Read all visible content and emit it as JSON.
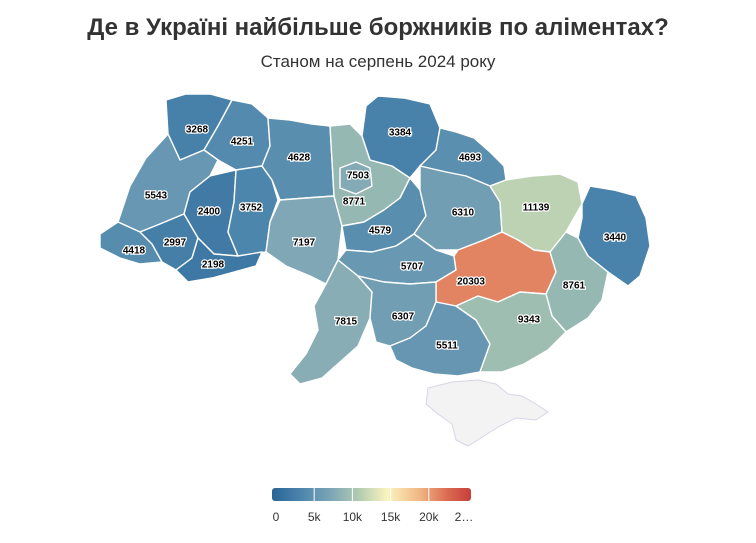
{
  "title": "Де в Україні найбільше боржників по аліментах?",
  "subtitle": "Станом на серпень 2024 року",
  "legend": {
    "min": 0,
    "max": 25000,
    "ticks": [
      "0",
      "5k",
      "10k",
      "15k",
      "20k",
      "2…"
    ],
    "colors": [
      "#2a6496",
      "#4a84ac",
      "#7ea6b6",
      "#b3cdb0",
      "#fbf4bf",
      "#f0b785",
      "#db6b52",
      "#c63f3a"
    ]
  },
  "regions": [
    {
      "id": "volyn",
      "value": 3268
    },
    {
      "id": "rivne",
      "value": 4251
    },
    {
      "id": "lviv",
      "value": 5543
    },
    {
      "id": "ternopil",
      "value": 2400
    },
    {
      "id": "khmelnytskyi",
      "value": 3752
    },
    {
      "id": "zakarpattia",
      "value": 4418
    },
    {
      "id": "ivano-frankivsk",
      "value": 2997
    },
    {
      "id": "chernivtsi",
      "value": 2198
    },
    {
      "id": "zhytomyr",
      "value": 4628
    },
    {
      "id": "vinnytsia",
      "value": 7197
    },
    {
      "id": "kyiv-city",
      "value": 7503
    },
    {
      "id": "kyiv-oblast",
      "value": 8771
    },
    {
      "id": "chernihiv",
      "value": 3384
    },
    {
      "id": "sumy",
      "value": 4693
    },
    {
      "id": "cherkasy",
      "value": 4579
    },
    {
      "id": "poltava",
      "value": 6310
    },
    {
      "id": "kharkiv",
      "value": 11139
    },
    {
      "id": "kirovohrad",
      "value": 5707
    },
    {
      "id": "dnipropetrovsk",
      "value": 20303
    },
    {
      "id": "luhansk",
      "value": 3440
    },
    {
      "id": "donetsk",
      "value": 8761
    },
    {
      "id": "odesa",
      "value": 7815
    },
    {
      "id": "mykolaiv",
      "value": 6307
    },
    {
      "id": "zaporizhzhia",
      "value": 9343
    },
    {
      "id": "kherson",
      "value": 5511
    }
  ]
}
